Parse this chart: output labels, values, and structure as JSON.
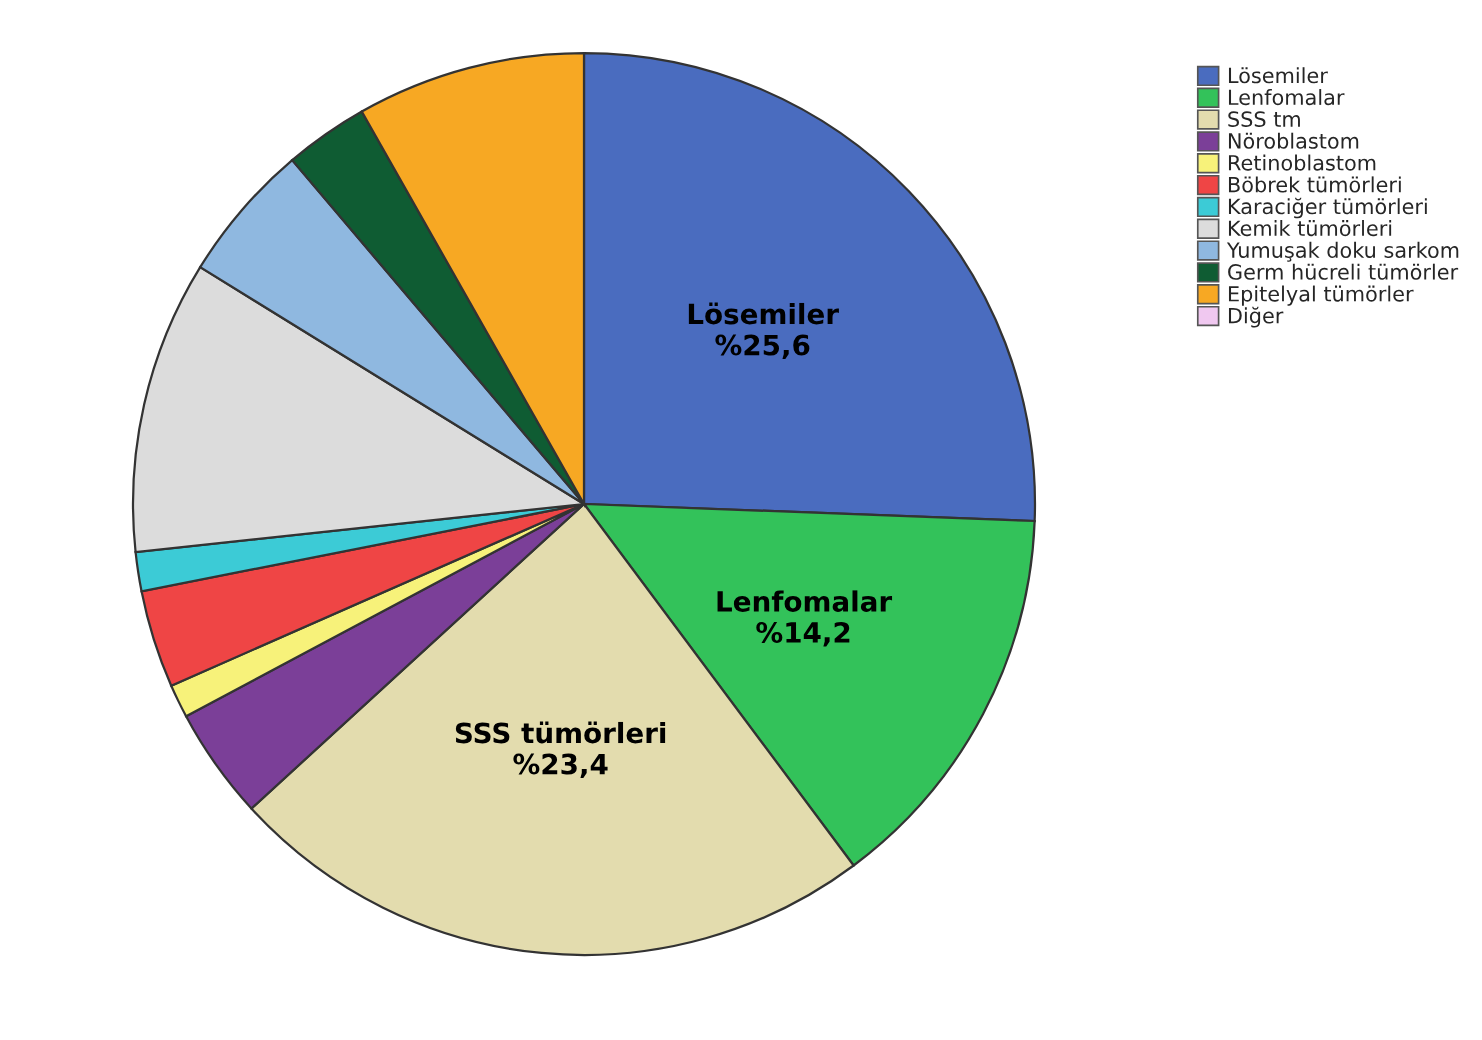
{
  "chart_data": {
    "type": "pie",
    "categories": [
      "Lösemiler",
      "Lenfomalar",
      "SSS tm",
      "Nöroblastom",
      "Retinoblastom",
      "Böbrek tümörleri",
      "Karaciğer tümörleri",
      "Kemik tümörleri",
      "Yumuşak doku sarkom",
      "Germ hücreli tümörler",
      "Epitelyal tümörler",
      "Diğer"
    ],
    "values": [
      25.6,
      14.2,
      23.4,
      4.0,
      1.2,
      3.5,
      1.4,
      10.5,
      5.0,
      3.0,
      8.2,
      0
    ],
    "colors": [
      "#4a6cbf",
      "#33c25a",
      "#e3dcae",
      "#7b3f98",
      "#f7f27a",
      "#ef4545",
      "#3ccbd6",
      "#dcdcdc",
      "#8fb8e0",
      "#0f5c33",
      "#f7a823",
      "#f0c8f0"
    ],
    "value_labels": [
      "Lösemiler\n%25,6",
      "Lenfomalar\n%14,2",
      "SSS tümörleri\n%23,4",
      null,
      null,
      null,
      null,
      null,
      null,
      null,
      null,
      null
    ],
    "legend": "top right"
  }
}
